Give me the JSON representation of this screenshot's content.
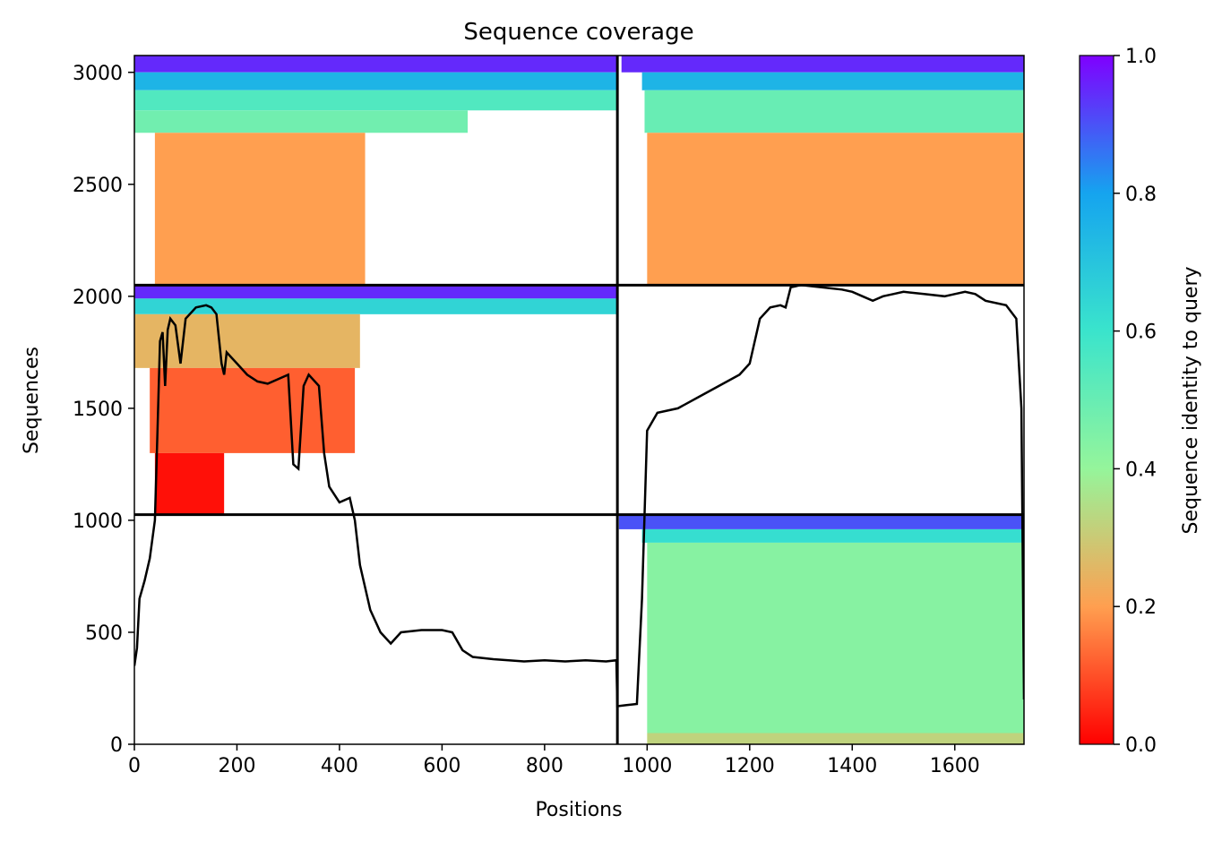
{
  "chart_data": {
    "type": "heatmap",
    "title": "Sequence coverage",
    "xlabel": "Positions",
    "ylabel": "Sequences",
    "xlim": [
      0,
      1735
    ],
    "ylim": [
      0,
      3075
    ],
    "xticks": [
      0,
      200,
      400,
      600,
      800,
      1000,
      1200,
      1400,
      1600
    ],
    "yticks": [
      0,
      500,
      1000,
      1500,
      2000,
      2500,
      3000
    ],
    "colormap": "rainbow_r",
    "colorbar": {
      "label": "Sequence identity to query",
      "range": [
        0.0,
        1.0
      ],
      "ticks": [
        0.0,
        0.2,
        0.4,
        0.6,
        0.8,
        1.0
      ]
    },
    "divider_positions": [
      942
    ],
    "divider_sequences": [
      1025,
      2050
    ],
    "coverage_blocks": [
      {
        "x_start": 0,
        "x_end": 942,
        "y_start": 2050,
        "y_end": 3075,
        "bands": [
          {
            "y0": 3000,
            "y1": 3075,
            "identity": 0.95,
            "x_start": 0,
            "x_end": 942
          },
          {
            "y0": 2920,
            "y1": 3000,
            "identity": 0.75,
            "x_start": 0,
            "x_end": 942
          },
          {
            "y0": 2830,
            "y1": 2920,
            "identity": 0.55,
            "x_start": 0,
            "x_end": 942
          },
          {
            "y0": 2730,
            "y1": 2830,
            "identity": 0.48,
            "x_start": 0,
            "x_end": 650
          },
          {
            "y0": 2050,
            "y1": 2730,
            "identity": 0.2,
            "x_start": 40,
            "x_end": 450
          }
        ]
      },
      {
        "x_start": 942,
        "x_end": 1735,
        "y_start": 2050,
        "y_end": 3075,
        "bands": [
          {
            "y0": 3000,
            "y1": 3075,
            "identity": 0.95,
            "x_start": 950,
            "x_end": 1735
          },
          {
            "y0": 2920,
            "y1": 3000,
            "identity": 0.75,
            "x_start": 990,
            "x_end": 1735
          },
          {
            "y0": 2730,
            "y1": 2920,
            "identity": 0.5,
            "x_start": 995,
            "x_end": 1735
          },
          {
            "y0": 2050,
            "y1": 2730,
            "identity": 0.2,
            "x_start": 1000,
            "x_end": 1735
          }
        ]
      },
      {
        "x_start": 0,
        "x_end": 942,
        "y_start": 1025,
        "y_end": 2050,
        "bands": [
          {
            "y0": 1990,
            "y1": 2050,
            "identity": 0.95,
            "x_start": 0,
            "x_end": 942
          },
          {
            "y0": 1920,
            "y1": 1990,
            "identity": 0.65,
            "x_start": 0,
            "x_end": 942
          },
          {
            "y0": 1680,
            "y1": 1920,
            "identity": 0.25,
            "x_start": 0,
            "x_end": 440
          },
          {
            "y0": 1300,
            "y1": 1680,
            "identity": 0.12,
            "x_start": 30,
            "x_end": 430
          },
          {
            "y0": 1025,
            "y1": 1300,
            "identity": 0.02,
            "x_start": 40,
            "x_end": 175
          }
        ]
      },
      {
        "x_start": 942,
        "x_end": 1735,
        "y_start": 0,
        "y_end": 1025,
        "bands": [
          {
            "y0": 960,
            "y1": 1025,
            "identity": 0.9,
            "x_start": 945,
            "x_end": 1735
          },
          {
            "y0": 900,
            "y1": 960,
            "identity": 0.62,
            "x_start": 990,
            "x_end": 1735
          },
          {
            "y0": 50,
            "y1": 900,
            "identity": 0.43,
            "x_start": 1000,
            "x_end": 1735
          },
          {
            "y0": 0,
            "y1": 50,
            "identity": 0.32,
            "x_start": 1000,
            "x_end": 1735
          }
        ]
      }
    ],
    "coverage_line": {
      "x": [
        0,
        5,
        10,
        20,
        30,
        40,
        45,
        50,
        55,
        60,
        65,
        70,
        80,
        90,
        100,
        120,
        140,
        150,
        160,
        170,
        175,
        180,
        200,
        220,
        240,
        260,
        280,
        300,
        310,
        320,
        330,
        340,
        360,
        370,
        380,
        400,
        420,
        430,
        440,
        460,
        480,
        500,
        520,
        560,
        600,
        620,
        640,
        660,
        700,
        760,
        800,
        840,
        880,
        920,
        940,
        942,
        960,
        980,
        990,
        1000,
        1020,
        1060,
        1100,
        1140,
        1180,
        1200,
        1220,
        1240,
        1260,
        1270,
        1280,
        1300,
        1340,
        1380,
        1400,
        1420,
        1440,
        1460,
        1480,
        1500,
        1540,
        1580,
        1600,
        1620,
        1640,
        1660,
        1700,
        1720,
        1730,
        1735
      ],
      "y": [
        350,
        430,
        650,
        730,
        830,
        1000,
        1400,
        1800,
        1840,
        1600,
        1850,
        1900,
        1870,
        1700,
        1900,
        1950,
        1960,
        1950,
        1920,
        1700,
        1650,
        1750,
        1700,
        1650,
        1620,
        1610,
        1630,
        1650,
        1250,
        1230,
        1600,
        1650,
        1600,
        1300,
        1150,
        1080,
        1100,
        1000,
        800,
        600,
        500,
        450,
        500,
        510,
        510,
        500,
        420,
        390,
        380,
        370,
        375,
        370,
        375,
        370,
        375,
        170,
        175,
        180,
        650,
        1400,
        1480,
        1500,
        1550,
        1600,
        1650,
        1700,
        1900,
        1950,
        1960,
        1950,
        2040,
        2050,
        2040,
        2030,
        2020,
        2000,
        1980,
        2000,
        2010,
        2020,
        2010,
        2000,
        2010,
        2020,
        2010,
        1980,
        1960,
        1900,
        1500,
        200
      ]
    }
  }
}
